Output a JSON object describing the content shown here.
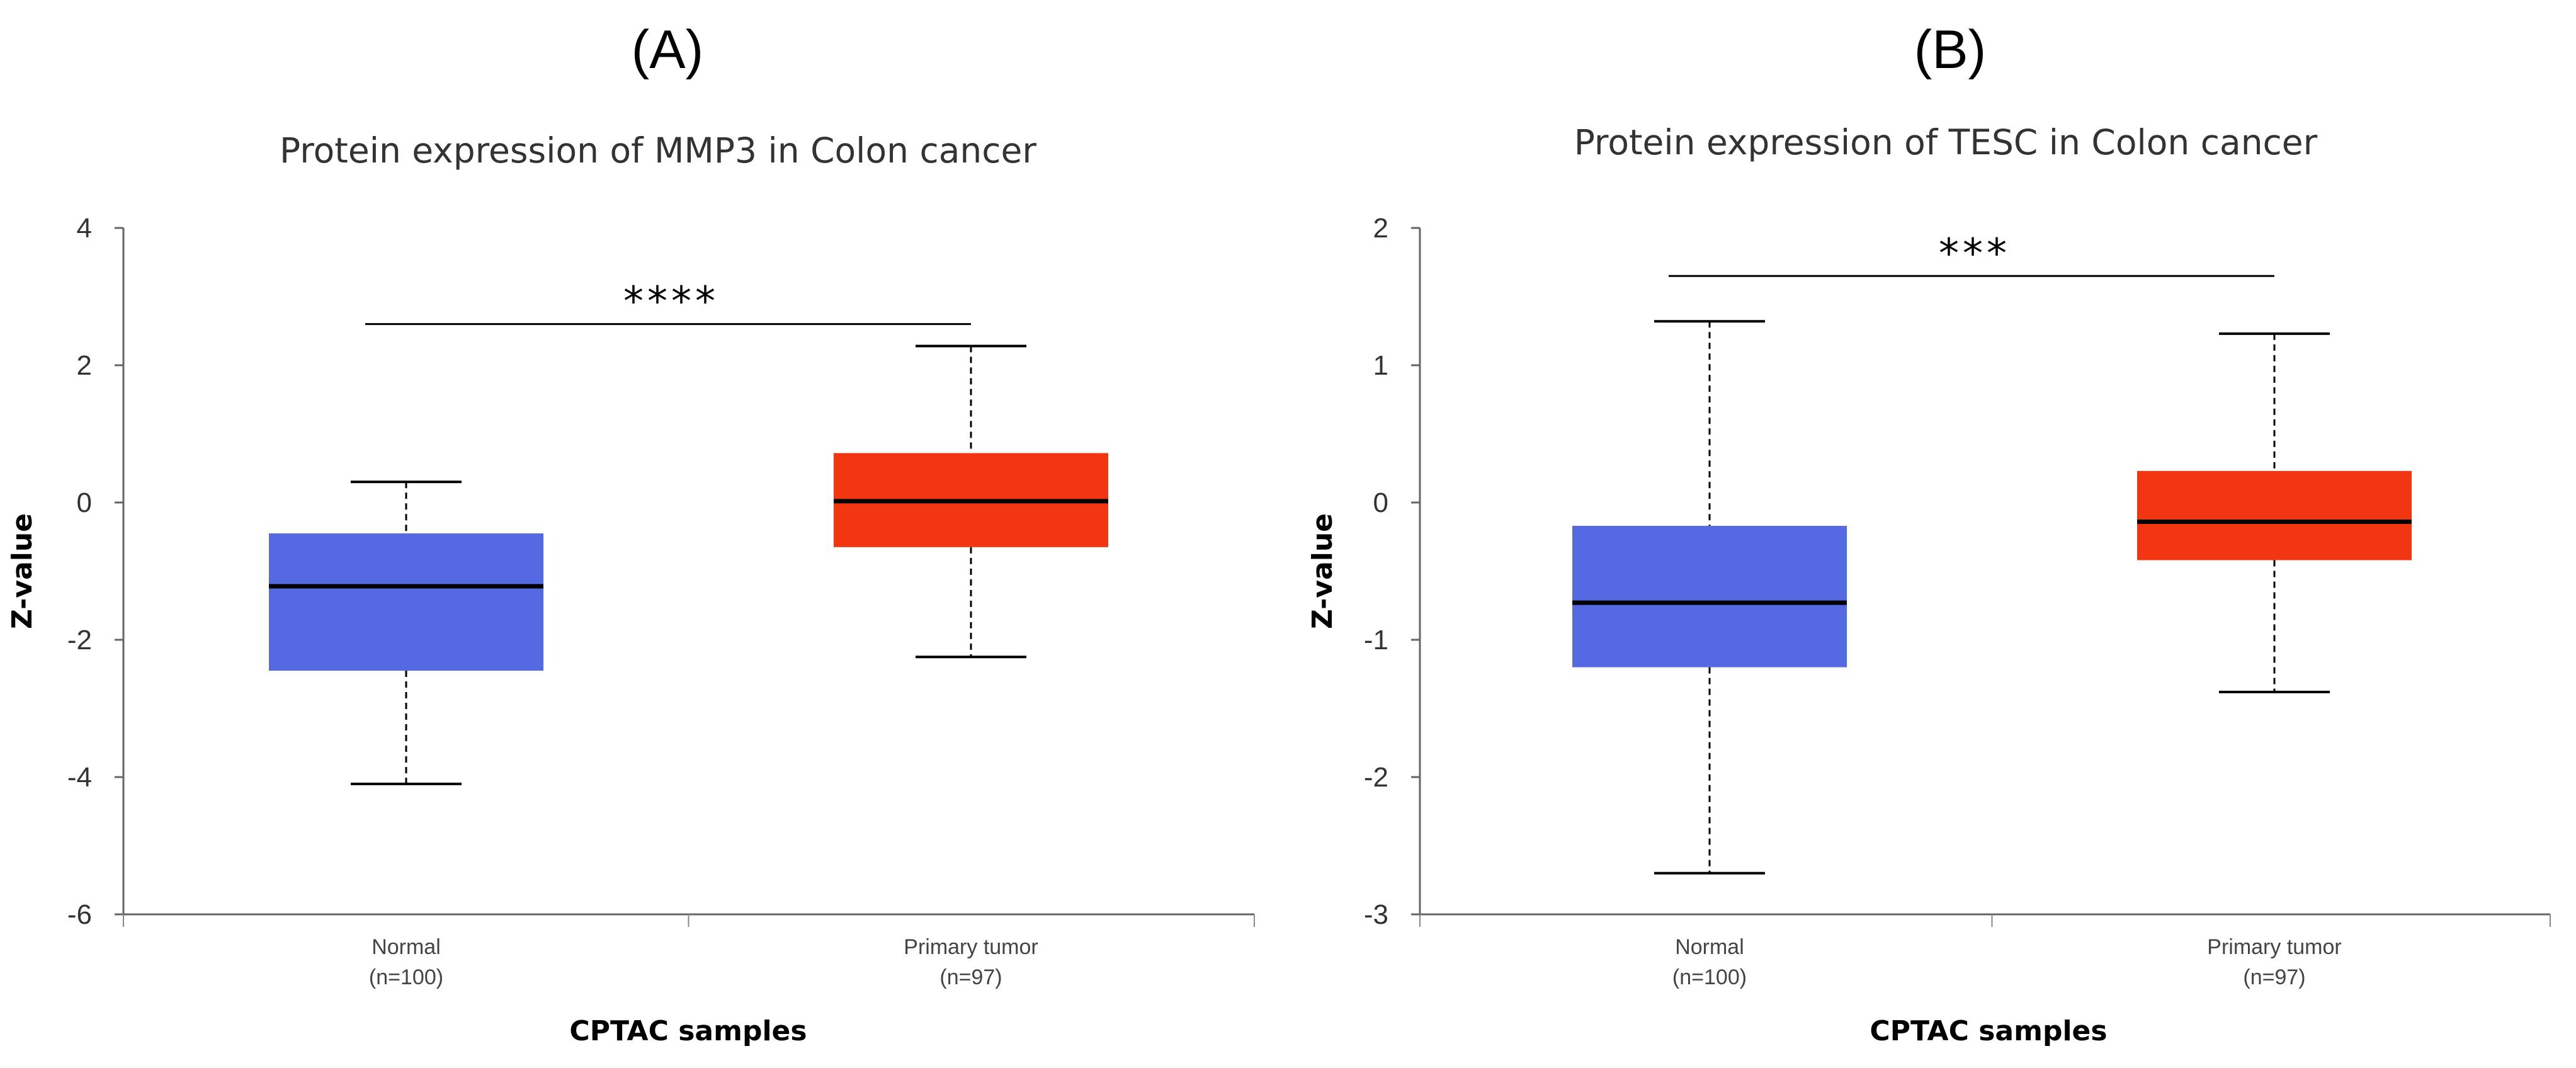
{
  "chart_data": [
    {
      "type": "box",
      "panel_label": "(A)",
      "title": "Protein expression of MMP3 in Colon cancer",
      "xlabel": "CPTAC samples",
      "ylabel": "Z-value",
      "ylim": [
        -6,
        4
      ],
      "yticks": [
        4,
        2,
        0,
        -2,
        -4,
        -6
      ],
      "ytick_labels": [
        "4",
        "2",
        "0",
        "-2",
        "-4",
        "-6"
      ],
      "significance": "****",
      "significance_span": [
        0,
        1
      ],
      "significance_y": 2.6,
      "categories": [
        {
          "name": "Normal",
          "n_label": "(n=100)",
          "color": "#5569E2",
          "min": -4.1,
          "q1": -2.45,
          "median": -1.22,
          "q3": -0.45,
          "max": 0.3
        },
        {
          "name": "Primary tumor",
          "n_label": "(n=97)",
          "color": "#F23611",
          "min": -2.25,
          "q1": -0.65,
          "median": 0.02,
          "q3": 0.72,
          "max": 2.28
        }
      ]
    },
    {
      "type": "box",
      "panel_label": "(B)",
      "title": "Protein expression of TESC in Colon cancer",
      "xlabel": "CPTAC samples",
      "ylabel": "Z-value",
      "ylim": [
        -3,
        2
      ],
      "yticks": [
        2,
        1,
        0,
        -1,
        -2,
        -3
      ],
      "ytick_labels": [
        "2",
        "1",
        "0",
        "-1",
        "-2",
        "-3"
      ],
      "significance": "***",
      "significance_span": [
        0,
        1
      ],
      "significance_y": 1.65,
      "categories": [
        {
          "name": "Normal",
          "n_label": "(n=100)",
          "color": "#5569E2",
          "min": -2.7,
          "q1": -1.2,
          "median": -0.73,
          "q3": -0.17,
          "max": 1.32
        },
        {
          "name": "Primary tumor",
          "n_label": "(n=97)",
          "color": "#F23611",
          "min": -1.38,
          "q1": -0.42,
          "median": -0.14,
          "q3": 0.23,
          "max": 1.23
        }
      ]
    }
  ]
}
